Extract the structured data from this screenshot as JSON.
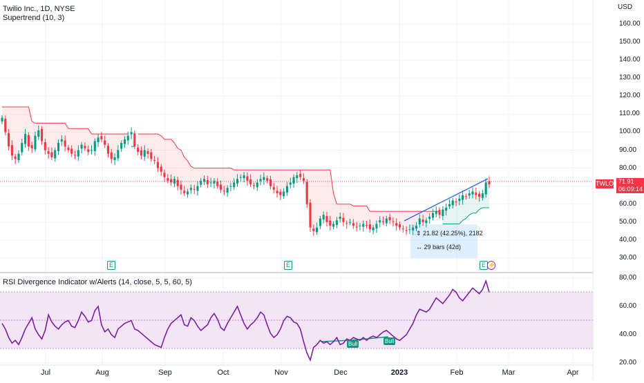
{
  "legend": {
    "symbol": "Twilio Inc., 1D, NYSE",
    "indicator": "Supertrend (10, 3)",
    "rsi_title": "RSI Divergence Indicator w/Alerts (14, close, 5, 5, 60, 5)"
  },
  "price_axis": {
    "currency": "USD",
    "ticks": [
      "160.00",
      "150.00",
      "140.00",
      "130.00",
      "120.00",
      "110.00",
      "100.00",
      "90.00",
      "80.00",
      "70.00",
      "60.00",
      "50.00",
      "40.00",
      "30.00"
    ]
  },
  "rsi_axis": {
    "ticks": [
      "80.00",
      "60.00",
      "40.00",
      "20.00"
    ]
  },
  "time_axis": {
    "labels": [
      {
        "text": "Jul",
        "bold": false
      },
      {
        "text": "Aug",
        "bold": false
      },
      {
        "text": "Sep",
        "bold": false
      },
      {
        "text": "Oct",
        "bold": false
      },
      {
        "text": "Nov",
        "bold": false
      },
      {
        "text": "Dec",
        "bold": false
      },
      {
        "text": "2023",
        "bold": true
      },
      {
        "text": "Feb",
        "bold": false
      },
      {
        "text": "Mar",
        "bold": false
      },
      {
        "text": "Apr",
        "bold": false
      }
    ]
  },
  "last_price": {
    "ticker": "TWLO",
    "price": "71.91",
    "countdown": "06:09:14"
  },
  "measure": {
    "change": "21.82 (42.25%), 2182",
    "bars": "29 bars (42d)"
  },
  "markers": {
    "earnings": "E",
    "divergence": "Bull"
  },
  "colors": {
    "up": "#089981",
    "down": "#f23645",
    "supertrend_down": "#f23645",
    "supertrend_up": "#089981",
    "rsi_line": "#7b1fa2",
    "rsi_band": "#f3e5f5"
  },
  "chart_data": [
    {
      "type": "candlestick",
      "title": "Twilio Inc., 1D, NYSE",
      "ylim": [
        25,
        168
      ],
      "series": [
        {
          "name": "Twilio Inc.",
          "close": [
            108,
            100,
            92,
            87,
            85,
            88,
            94,
            99,
            92,
            91,
            98,
            101,
            95,
            90,
            88,
            86,
            90,
            94,
            96,
            92,
            90,
            88,
            87,
            90,
            93,
            91,
            89,
            90,
            95,
            97,
            96,
            93,
            88,
            85,
            86,
            90,
            94,
            96,
            98,
            100,
            92,
            89,
            87,
            90,
            88,
            85,
            84,
            80,
            78,
            75,
            73,
            72,
            74,
            70,
            68,
            66,
            67,
            69,
            68,
            70,
            73,
            74,
            71,
            72,
            73,
            70,
            68,
            67,
            69,
            70,
            72,
            74,
            75,
            76,
            73,
            71,
            70,
            72,
            74,
            75,
            73,
            70,
            68,
            66,
            65,
            67,
            70,
            72,
            75,
            76,
            75,
            73,
            60,
            47,
            45,
            47,
            52,
            54,
            50,
            48,
            49,
            51,
            53,
            50,
            49,
            50,
            48,
            47,
            48,
            49,
            48,
            46,
            47,
            49,
            51,
            50,
            52,
            51,
            50,
            48,
            47,
            46,
            45,
            46,
            47,
            48,
            52,
            50,
            51,
            53,
            55,
            56,
            54,
            57,
            58,
            60,
            62,
            61,
            63,
            65,
            64,
            66,
            67,
            65,
            64,
            66,
            72,
            71
          ]
        }
      ],
      "annotation": "21.82 (42.25%), 2182 / 29 bars (42d)"
    },
    {
      "type": "line",
      "title": "RSI Divergence Indicator w/Alerts (14, close, 5, 5, 60, 5)",
      "ylim": [
        17,
        83
      ],
      "series": [
        {
          "name": "RSI",
          "values": [
            48,
            44,
            38,
            34,
            36,
            33,
            38,
            44,
            48,
            52,
            44,
            40,
            37,
            43,
            54,
            49,
            46,
            44,
            47,
            49,
            50,
            46,
            45,
            50,
            56,
            53,
            49,
            50,
            57,
            60,
            47,
            42,
            44,
            40,
            38,
            44,
            46,
            48,
            49,
            50,
            44,
            43,
            41,
            39,
            37,
            35,
            33,
            32,
            31,
            38,
            44,
            48,
            50,
            52,
            54,
            47,
            46,
            52,
            50,
            46,
            43,
            45,
            47,
            52,
            55,
            51,
            45,
            43,
            48,
            52,
            56,
            60,
            54,
            48,
            44,
            47,
            49,
            52,
            56,
            54,
            47,
            41,
            38,
            40,
            44,
            50,
            53,
            52,
            49,
            48,
            44,
            35,
            27,
            22,
            31,
            33,
            36,
            34,
            35,
            33,
            35,
            38,
            33,
            34,
            37,
            36,
            38,
            37,
            36,
            38,
            36,
            38,
            39,
            38,
            40,
            42,
            43,
            41,
            39,
            37,
            36,
            38,
            40,
            44,
            48,
            54,
            58,
            57,
            56,
            58,
            62,
            66,
            64,
            62,
            65,
            68,
            72,
            70,
            66,
            64,
            67,
            70,
            73,
            71,
            69,
            72,
            78,
            70
          ]
        }
      ]
    }
  ]
}
